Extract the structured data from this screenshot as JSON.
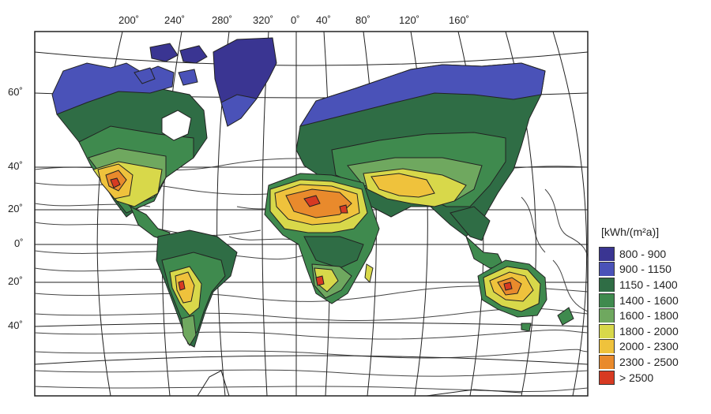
{
  "legend": {
    "title": "[kWh/(m²a)]",
    "classes": [
      {
        "label": "800 - 900",
        "color": "#3a3592"
      },
      {
        "label": "900 - 1150",
        "color": "#4a52b8"
      },
      {
        "label": "1150 - 1400",
        "color": "#2f6d45"
      },
      {
        "label": "1400 - 1600",
        "color": "#3f8a4e"
      },
      {
        "label": "1600 - 1800",
        "color": "#6fa85f"
      },
      {
        "label": "1800 - 2000",
        "color": "#d8d84a"
      },
      {
        "label": "2000 - 2300",
        "color": "#efc23c"
      },
      {
        "label": "2300 - 2500",
        "color": "#e98a2c"
      },
      {
        "label": "> 2500",
        "color": "#d73a22"
      }
    ]
  },
  "longitude_labels": [
    "200˚",
    "240˚",
    "280˚",
    "320˚",
    "0˚",
    "40˚",
    "80˚",
    "120˚",
    "160˚"
  ],
  "latitude_labels": [
    "60˚",
    "40˚",
    "20˚",
    "0˚",
    "20˚",
    "40˚"
  ]
}
